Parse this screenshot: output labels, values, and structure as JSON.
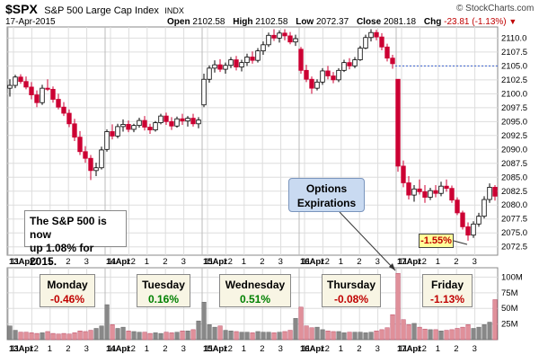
{
  "header": {
    "symbol": "$SPX",
    "name": "S&P 500 Large Cap Index",
    "exchange": "INDX",
    "date": "17-Apr-2015",
    "open_label": "Open",
    "open": "2102.58",
    "high_label": "High",
    "high": "2102.58",
    "low_label": "Low",
    "low": "2072.37",
    "close_label": "Close",
    "close": "2081.18",
    "chg_label": "Chg",
    "chg": "-23.81 (-1.13%)",
    "watermark": "© StockCharts.com"
  },
  "annotations": {
    "note_line1": "The S&P 500 is now",
    "note_line2": "up 1.08% for 2015.",
    "callout_line1": "Options",
    "callout_line2": "Expirations",
    "ytd_badge": "-1.55%",
    "marker_level": 2105.0
  },
  "days": [
    {
      "name": "Monday",
      "change": "-0.46%",
      "color": "#c00000"
    },
    {
      "name": "Tuesday",
      "change": "0.16%",
      "color": "#008000"
    },
    {
      "name": "Wednesday",
      "change": "0.51%",
      "color": "#008000"
    },
    {
      "name": "Thursday",
      "change": "-0.08%",
      "color": "#c00000"
    },
    {
      "name": "Friday",
      "change": "-1.13%",
      "color": "#c00000"
    }
  ],
  "colors": {
    "up": "#000000",
    "down": "#cc0033",
    "vol_up": "#888888",
    "vol_down": "#e0909a",
    "grid": "#dddddd"
  },
  "chart_data": {
    "type": "candlestick",
    "title": "$SPX S&P 500 Large Cap Index INDX",
    "price_ticks": [
      2072.5,
      2075.0,
      2077.5,
      2080.0,
      2082.5,
      2085.0,
      2087.5,
      2090.0,
      2092.5,
      2095.0,
      2097.5,
      2100.0,
      2102.5,
      2105.0,
      2107.5,
      2110.0
    ],
    "price_tick_labels": [
      "2072.5",
      "2075.0",
      "2077.5",
      "2080.0",
      "2082.5",
      "2085.0",
      "2087.5",
      "2090.0",
      "2092.5",
      "2095.0",
      "2097.5",
      "2100.0",
      "2102.5",
      "2105.0",
      "2107.5",
      "2110.0"
    ],
    "ylim": [
      2071.0,
      2112.0
    ],
    "volume_ticks": [
      25,
      50,
      75,
      100
    ],
    "volume_tick_labels": [
      "25M",
      "50M",
      "75M",
      "100M"
    ],
    "volume_ylim": [
      0,
      115
    ],
    "x_labels": [
      "13Apr",
      "11",
      "12",
      "1",
      "2",
      "3",
      "14Apr",
      "11",
      "12",
      "1",
      "2",
      "3",
      "15Apr",
      "11",
      "12",
      "1",
      "2",
      "3",
      "16Apr",
      "11",
      "12",
      "1",
      "2",
      "3",
      "17Apr",
      "11",
      "12",
      "1",
      "2",
      "3"
    ],
    "candles": [
      [
        2101.0,
        2102.6,
        2099.5,
        2101.5
      ],
      [
        2101.5,
        2103.4,
        2101.0,
        2103.0
      ],
      [
        2103.0,
        2103.5,
        2101.8,
        2102.2
      ],
      [
        2102.2,
        2103.1,
        2100.8,
        2101.2
      ],
      [
        2101.2,
        2102.1,
        2099.0,
        2099.8
      ],
      [
        2099.8,
        2100.6,
        2097.6,
        2098.4
      ],
      [
        2098.4,
        2101.6,
        2098.0,
        2101.0
      ],
      [
        2101.0,
        2102.6,
        2100.5,
        2100.8
      ],
      [
        2100.8,
        2101.3,
        2098.4,
        2099.0
      ],
      [
        2099.0,
        2100.0,
        2097.2,
        2097.6
      ],
      [
        2097.6,
        2098.5,
        2096.0,
        2096.5
      ],
      [
        2096.5,
        2097.2,
        2094.0,
        2094.6
      ],
      [
        2094.6,
        2095.5,
        2091.5,
        2092.2
      ],
      [
        2092.2,
        2093.3,
        2089.0,
        2089.6
      ],
      [
        2089.6,
        2090.6,
        2087.6,
        2088.4
      ],
      [
        2088.4,
        2089.0,
        2084.5,
        2086.2
      ],
      [
        2086.2,
        2087.6,
        2085.2,
        2086.7
      ],
      [
        2086.7,
        2090.5,
        2086.4,
        2089.9
      ],
      [
        2090.0,
        2093.6,
        2089.6,
        2093.2
      ],
      [
        2093.2,
        2094.5,
        2091.8,
        2092.4
      ],
      [
        2092.4,
        2094.6,
        2092.0,
        2094.1
      ],
      [
        2094.1,
        2095.4,
        2093.2,
        2094.5
      ],
      [
        2094.5,
        2095.2,
        2093.1,
        2093.6
      ],
      [
        2093.6,
        2094.6,
        2093.1,
        2094.3
      ],
      [
        2094.3,
        2095.7,
        2093.9,
        2095.2
      ],
      [
        2095.2,
        2096.0,
        2093.4,
        2094.0
      ],
      [
        2094.0,
        2094.6,
        2092.8,
        2093.5
      ],
      [
        2093.5,
        2095.1,
        2093.2,
        2094.8
      ],
      [
        2094.8,
        2096.4,
        2094.5,
        2096.0
      ],
      [
        2096.0,
        2096.6,
        2094.4,
        2095.0
      ],
      [
        2095.0,
        2095.8,
        2093.5,
        2094.2
      ],
      [
        2094.2,
        2095.9,
        2093.9,
        2095.5
      ],
      [
        2095.5,
        2096.4,
        2094.4,
        2095.1
      ],
      [
        2095.1,
        2096.0,
        2094.1,
        2095.6
      ],
      [
        2095.6,
        2096.4,
        2094.1,
        2094.6
      ],
      [
        2094.6,
        2095.8,
        2093.8,
        2095.3
      ],
      [
        2098.0,
        2103.6,
        2097.6,
        2102.6
      ],
      [
        2102.6,
        2105.1,
        2102.0,
        2104.6
      ],
      [
        2104.6,
        2106.0,
        2103.8,
        2105.2
      ],
      [
        2105.2,
        2106.2,
        2103.9,
        2104.4
      ],
      [
        2104.4,
        2105.6,
        2103.6,
        2105.1
      ],
      [
        2105.1,
        2106.6,
        2104.6,
        2106.1
      ],
      [
        2106.1,
        2106.8,
        2104.2,
        2104.8
      ],
      [
        2104.8,
        2106.1,
        2104.0,
        2105.6
      ],
      [
        2105.6,
        2107.2,
        2105.0,
        2106.6
      ],
      [
        2106.6,
        2107.6,
        2105.4,
        2106.0
      ],
      [
        2106.0,
        2108.2,
        2105.6,
        2107.7
      ],
      [
        2107.7,
        2109.4,
        2107.0,
        2108.8
      ],
      [
        2108.8,
        2111.0,
        2108.4,
        2110.5
      ],
      [
        2110.5,
        2111.6,
        2109.5,
        2110.0
      ],
      [
        2110.0,
        2111.4,
        2109.2,
        2110.9
      ],
      [
        2110.9,
        2111.6,
        2109.6,
        2110.4
      ],
      [
        2110.4,
        2111.1,
        2108.9,
        2109.3
      ],
      [
        2109.3,
        2110.6,
        2108.6,
        2109.9
      ],
      [
        2108.0,
        2108.4,
        2103.6,
        2104.2
      ],
      [
        2104.2,
        2105.2,
        2102.1,
        2102.6
      ],
      [
        2102.6,
        2103.1,
        2100.0,
        2101.0
      ],
      [
        2101.0,
        2102.6,
        2100.6,
        2102.1
      ],
      [
        2102.1,
        2104.6,
        2101.6,
        2104.1
      ],
      [
        2104.1,
        2105.0,
        2102.6,
        2103.2
      ],
      [
        2103.2,
        2103.9,
        2101.9,
        2102.5
      ],
      [
        2102.5,
        2104.6,
        2102.1,
        2104.2
      ],
      [
        2104.2,
        2106.1,
        2103.9,
        2105.6
      ],
      [
        2105.6,
        2106.4,
        2104.4,
        2105.0
      ],
      [
        2105.0,
        2106.6,
        2104.6,
        2106.1
      ],
      [
        2106.1,
        2108.6,
        2105.9,
        2108.2
      ],
      [
        2108.2,
        2110.6,
        2108.0,
        2110.1
      ],
      [
        2110.1,
        2111.6,
        2109.4,
        2111.0
      ],
      [
        2111.0,
        2111.5,
        2109.6,
        2110.2
      ],
      [
        2110.2,
        2110.9,
        2107.8,
        2108.4
      ],
      [
        2108.4,
        2109.0,
        2105.8,
        2106.4
      ],
      [
        2106.4,
        2107.0,
        2104.5,
        2105.4
      ],
      [
        2102.6,
        2102.6,
        2086.0,
        2087.0
      ],
      [
        2087.0,
        2088.0,
        2083.2,
        2084.0
      ],
      [
        2084.0,
        2085.2,
        2081.0,
        2081.8
      ],
      [
        2081.8,
        2083.6,
        2080.6,
        2082.9
      ],
      [
        2082.9,
        2084.6,
        2081.9,
        2082.4
      ],
      [
        2082.4,
        2083.6,
        2080.4,
        2081.4
      ],
      [
        2081.4,
        2083.1,
        2080.9,
        2082.6
      ],
      [
        2082.6,
        2083.6,
        2081.4,
        2082.1
      ],
      [
        2082.1,
        2084.2,
        2081.6,
        2083.4
      ],
      [
        2083.4,
        2084.6,
        2082.4,
        2083.0
      ],
      [
        2083.0,
        2083.5,
        2080.4,
        2080.9
      ],
      [
        2080.9,
        2081.4,
        2078.2,
        2078.6
      ],
      [
        2078.6,
        2079.0,
        2075.6,
        2076.1
      ],
      [
        2076.1,
        2076.9,
        2073.6,
        2074.6
      ],
      [
        2074.6,
        2077.1,
        2074.1,
        2076.6
      ],
      [
        2076.6,
        2078.6,
        2076.1,
        2078.0
      ],
      [
        2078.0,
        2081.6,
        2077.6,
        2081.0
      ],
      [
        2081.0,
        2083.9,
        2080.4,
        2083.2
      ],
      [
        2083.2,
        2083.6,
        2080.8,
        2081.6
      ]
    ],
    "volumes": [
      22,
      15,
      12,
      12,
      11,
      10,
      11,
      13,
      10,
      9,
      10,
      9,
      11,
      14,
      13,
      15,
      18,
      22,
      56,
      24,
      18,
      20,
      14,
      13,
      12,
      12,
      10,
      11,
      10,
      12,
      11,
      12,
      14,
      14,
      16,
      30,
      60,
      24,
      20,
      22,
      15,
      14,
      13,
      12,
      12,
      11,
      13,
      12,
      12,
      11,
      12,
      13,
      15,
      34,
      52,
      22,
      19,
      20,
      16,
      14,
      13,
      13,
      11,
      12,
      12,
      12,
      11,
      12,
      14,
      16,
      19,
      40,
      106,
      32,
      24,
      26,
      20,
      17,
      16,
      16,
      14,
      15,
      16,
      18,
      20,
      24,
      18,
      20,
      24,
      28,
      64
    ]
  }
}
